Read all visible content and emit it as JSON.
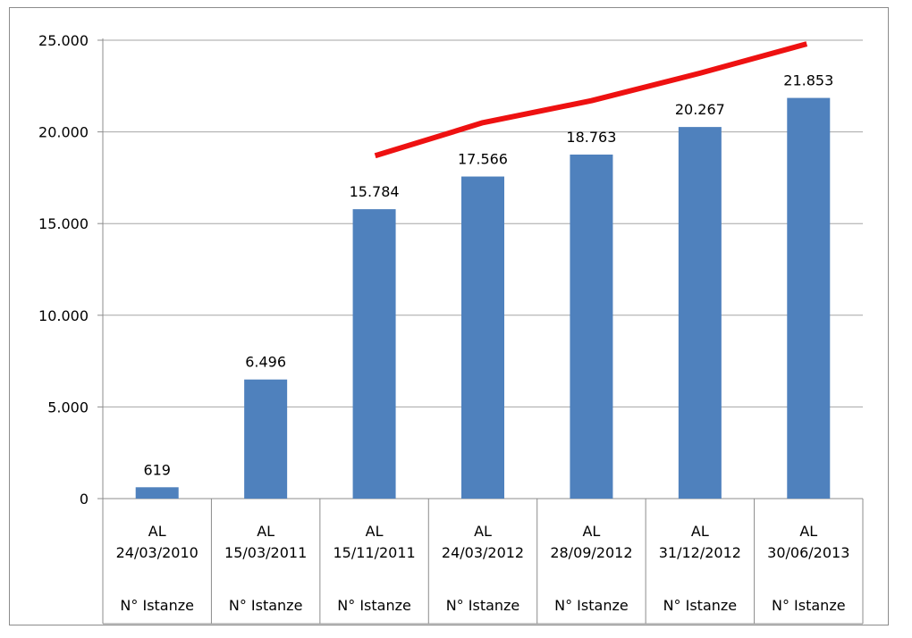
{
  "chart_data": {
    "type": "bar",
    "categories": [
      {
        "line1": "AL",
        "line2": "24/03/2010",
        "sub": "N° Istanze"
      },
      {
        "line1": "AL",
        "line2": "15/03/2011",
        "sub": "N° Istanze"
      },
      {
        "line1": "AL",
        "line2": "15/11/2011",
        "sub": "N° Istanze"
      },
      {
        "line1": "AL",
        "line2": "24/03/2012",
        "sub": "N° Istanze"
      },
      {
        "line1": "AL",
        "line2": "28/09/2012",
        "sub": "N° Istanze"
      },
      {
        "line1": "AL",
        "line2": "31/12/2012",
        "sub": "N° Istanze"
      },
      {
        "line1": "AL",
        "line2": "30/06/2013",
        "sub": "N° Istanze"
      }
    ],
    "values": [
      619,
      6496,
      15784,
      17566,
      18763,
      20267,
      21853
    ],
    "value_labels": [
      "619",
      "6.496",
      "15.784",
      "17.566",
      "18.763",
      "20.267",
      "21.853"
    ],
    "trend_line": {
      "color": "#ee1111",
      "points": [
        {
          "category_index": 2,
          "y": 18700
        },
        {
          "category_index": 3,
          "y": 20500
        },
        {
          "category_index": 4,
          "y": 21700
        },
        {
          "category_index": 5,
          "y": 23200
        },
        {
          "category_index": 6,
          "y": 24800
        }
      ]
    },
    "ylim": [
      0,
      25000
    ],
    "yticks": [
      0,
      5000,
      10000,
      15000,
      20000,
      25000
    ],
    "ytick_labels": [
      "0",
      "5.000",
      "10.000",
      "15.000",
      "20.000",
      "25.000"
    ],
    "grid": true,
    "title": "",
    "xlabel": "",
    "ylabel": "",
    "bar_color": "#4f81bd",
    "grid_color": "#a6a6a6"
  }
}
